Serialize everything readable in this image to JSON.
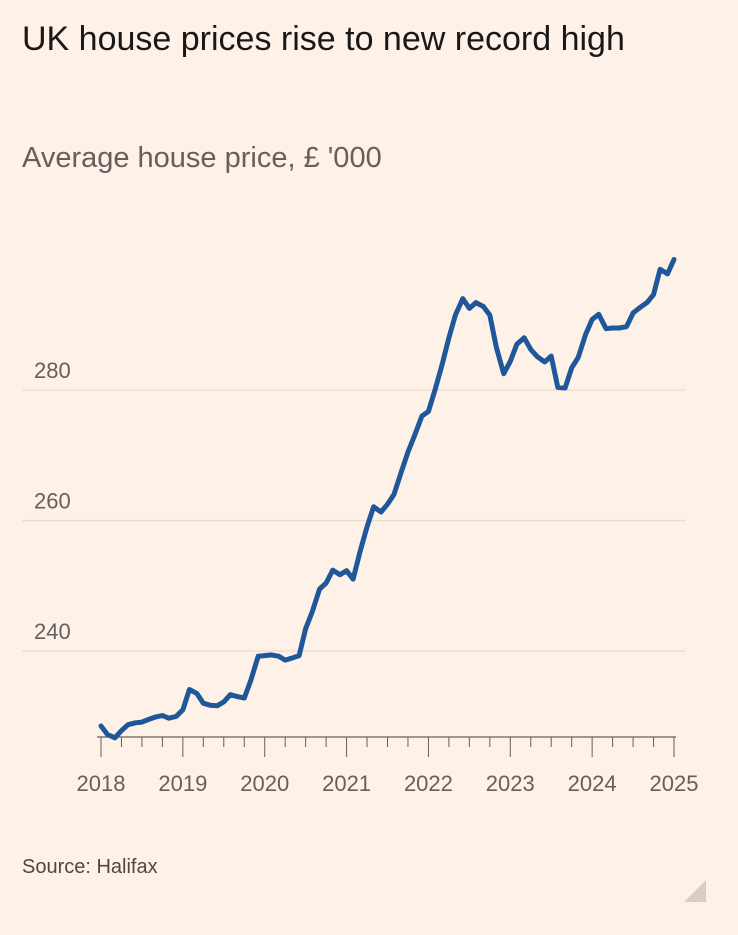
{
  "title": "UK house prices rise to new record high",
  "subtitle": "Average house price, £ '000",
  "source": "Source: Halifax",
  "colors": {
    "background": "#fdf1e8",
    "line": "#1f5799",
    "grid": "#e8dcd3",
    "axis": "#66605c"
  },
  "chart_data": {
    "type": "line",
    "title": "UK house prices rise to new record high",
    "subtitle": "Average house price, £ '000",
    "xlabel": "",
    "ylabel": "",
    "ylim": [
      226,
      303
    ],
    "xlim": [
      2017.9,
      2025.05
    ],
    "yticks": [
      240,
      260,
      280
    ],
    "xticks": [
      2018,
      2019,
      2020,
      2021,
      2022,
      2023,
      2024,
      2025
    ],
    "grid": true,
    "legend": "none",
    "series": [
      {
        "x": [
          2018.0,
          2018.08,
          2018.17,
          2018.25,
          2018.33,
          2018.42,
          2018.5,
          2018.58,
          2018.67,
          2018.75,
          2018.83,
          2018.92,
          2019.0,
          2019.08,
          2019.17,
          2019.25,
          2019.33,
          2019.42,
          2019.5,
          2019.58,
          2019.67,
          2019.75,
          2019.83,
          2019.92,
          2020.0,
          2020.08,
          2020.17,
          2020.25,
          2020.33,
          2020.42,
          2020.5,
          2020.58,
          2020.67,
          2020.75,
          2020.83,
          2020.92,
          2021.0,
          2021.08,
          2021.17,
          2021.25,
          2021.33,
          2021.42,
          2021.5,
          2021.58,
          2021.67,
          2021.75,
          2021.83,
          2021.92,
          2022.0,
          2022.08,
          2022.17,
          2022.25,
          2022.33,
          2022.42,
          2022.5,
          2022.58,
          2022.67,
          2022.75,
          2022.83,
          2022.92,
          2023.0,
          2023.08,
          2023.17,
          2023.25,
          2023.33,
          2023.42,
          2023.5,
          2023.58,
          2023.67,
          2023.75,
          2023.83,
          2023.92,
          2024.0,
          2024.08,
          2024.17,
          2024.25,
          2024.33,
          2024.42,
          2024.5,
          2024.58,
          2024.67,
          2024.75,
          2024.83,
          2024.92,
          2025.0
        ],
        "values": [
          228.5,
          227.2,
          226.7,
          227.8,
          228.7,
          229.0,
          229.1,
          229.5,
          229.9,
          230.1,
          229.7,
          230.0,
          231.0,
          234.1,
          233.5,
          232.0,
          231.7,
          231.6,
          232.2,
          233.3,
          233.0,
          232.8,
          235.5,
          239.2,
          239.3,
          239.4,
          239.2,
          238.6,
          238.9,
          239.3,
          243.4,
          246.0,
          249.5,
          250.4,
          252.4,
          251.7,
          252.3,
          251.0,
          255.5,
          259.0,
          262.1,
          261.3,
          262.5,
          264.0,
          267.5,
          270.5,
          273.0,
          276.0,
          276.7,
          280.0,
          284.0,
          288.0,
          291.5,
          294.0,
          292.5,
          293.4,
          292.8,
          291.5,
          286.5,
          282.5,
          284.4,
          287.0,
          288.0,
          286.2,
          285.1,
          284.3,
          285.2,
          280.4,
          280.3,
          283.4,
          285.0,
          288.5,
          290.8,
          291.6,
          289.4,
          289.5,
          289.5,
          289.7,
          291.8,
          292.6,
          293.4,
          294.6,
          298.5,
          297.8,
          300.0
        ]
      }
    ]
  }
}
